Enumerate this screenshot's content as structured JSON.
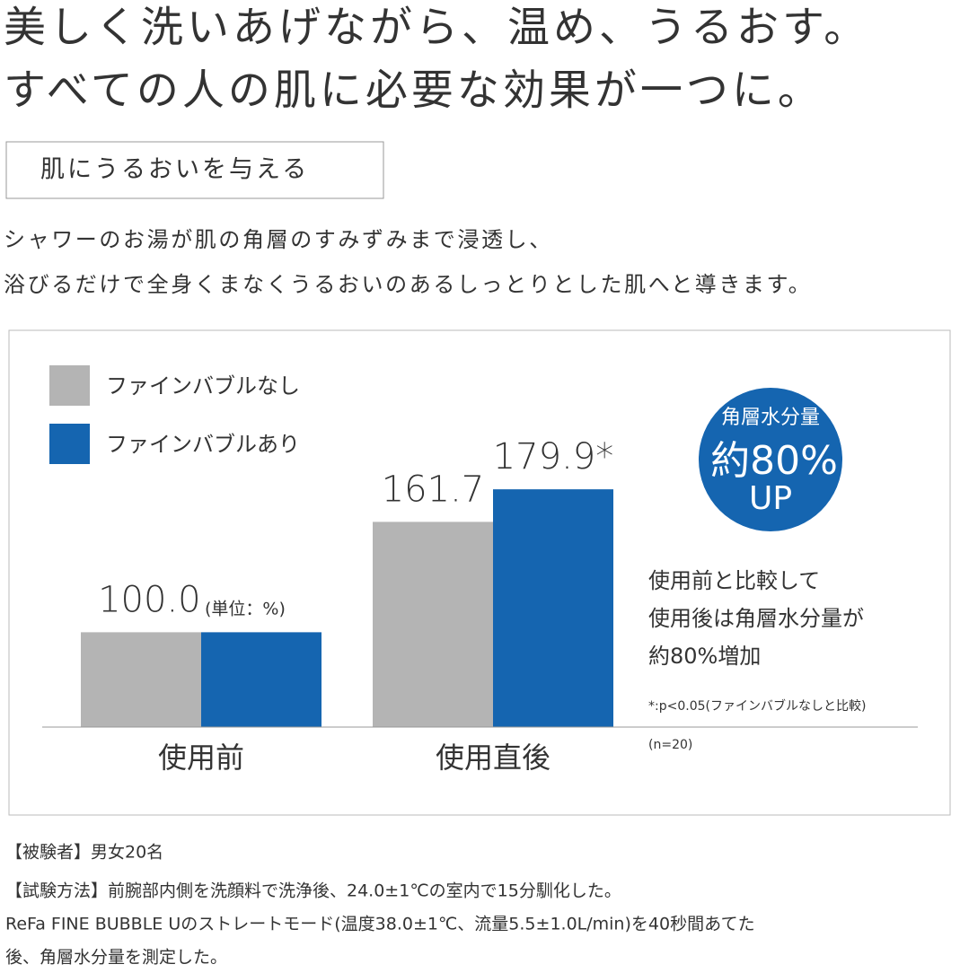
{
  "header": {
    "lines": [
      "美しく洗いあげながら、温め、うるおす。",
      "すべての人の肌に必要な効果が一つに。"
    ]
  },
  "section_label": "肌にうるおいを与える",
  "description": [
    "シャワーのお湯が肌の角層のすみずみまで浸透し、",
    "浴びるだけで全身くまなくうるおいのあるしっとりとした肌へと導きます。"
  ],
  "chart_data": {
    "type": "bar",
    "categories": [
      "使用前",
      "使用直後"
    ],
    "series": [
      {
        "name": "ファインバブルなし",
        "color": "#b4b4b4",
        "values": [
          100,
          161.7
        ],
        "value_labels": [
          "100.0",
          "161.7"
        ]
      },
      {
        "name": "ファインバブルあり",
        "color": "#1565b0",
        "values": [
          100,
          179.9
        ],
        "value_labels": [
          null,
          "179.9*"
        ]
      }
    ],
    "ylim": [
      47,
      190
    ],
    "unit_note": "(単位：%)",
    "badge": [
      "角層水分量",
      "約80%",
      "UP"
    ],
    "annotation": [
      "使用前と比較して",
      "使用後は角層水分量が",
      "約80%増加"
    ],
    "significance_note": "*:p<0.05(ファインバブルなしと比較)",
    "sample_note": "(n=20)"
  },
  "notes": [
    "【被験者】男女20名",
    "【試験方法】前腕部内側を洗顔料で洗浄後、24.0±1℃の室内で15分馴化した。",
    "ReFa FINE BUBBLE Uのストレートモード(温度38.0±1℃、流量5.5±1.0L/min)を40秒間あてた",
    "後、角層水分量を測定した。"
  ]
}
